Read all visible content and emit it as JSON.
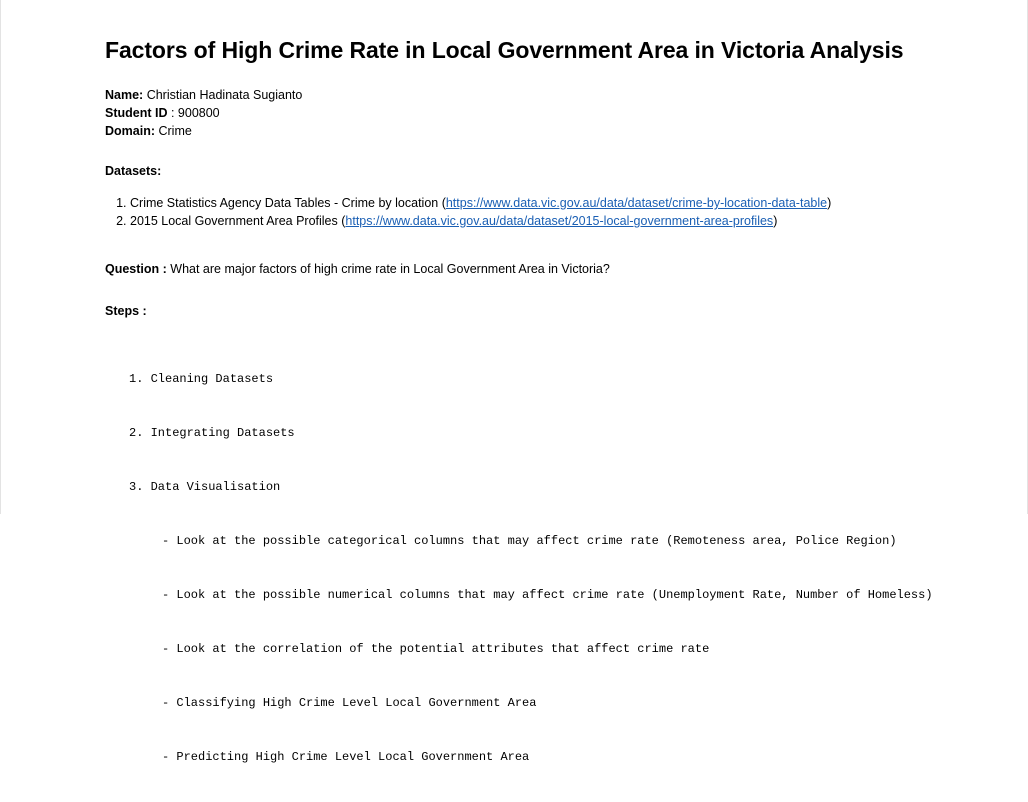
{
  "title": "Factors of High Crime Rate in Local Government Area in Victoria Analysis",
  "meta": {
    "name_label": "Name:",
    "name_value": " Christian Hadinata Sugianto",
    "student_id_label": "Student ID",
    "student_id_value": " : 900800",
    "domain_label": "Domain:",
    "domain_value": " Crime"
  },
  "datasets_label": "Datasets:",
  "datasets": [
    {
      "text": "Crime Statistics Agency Data Tables - Crime by location (",
      "link": "https://www.data.vic.gov.au/data/dataset/crime-by-location-data-table",
      "suffix": ")"
    },
    {
      "text": "2015 Local Government Area Profiles (",
      "link": "https://www.data.vic.gov.au/data/dataset/2015-local-government-area-profiles",
      "suffix": ")"
    }
  ],
  "question": {
    "label": "Question :",
    "text": " What are major factors of high crime rate in Local Government Area in Victoria?"
  },
  "steps_label": "Steps :",
  "steps": [
    "1. Cleaning Datasets",
    "2. Integrating Datasets",
    "3. Data Visualisation"
  ],
  "substeps": [
    "- Look at the possible categorical columns that may affect crime rate (Remoteness area, Police Region)",
    "- Look at the possible numerical columns that may affect crime rate (Unemployment Rate, Number of Homeless)",
    "- Look at the correlation of the potential attributes that affect crime rate",
    "- Classifying High Crime Level Local Government Area",
    "- Predicting High Crime Level Local Government Area"
  ]
}
